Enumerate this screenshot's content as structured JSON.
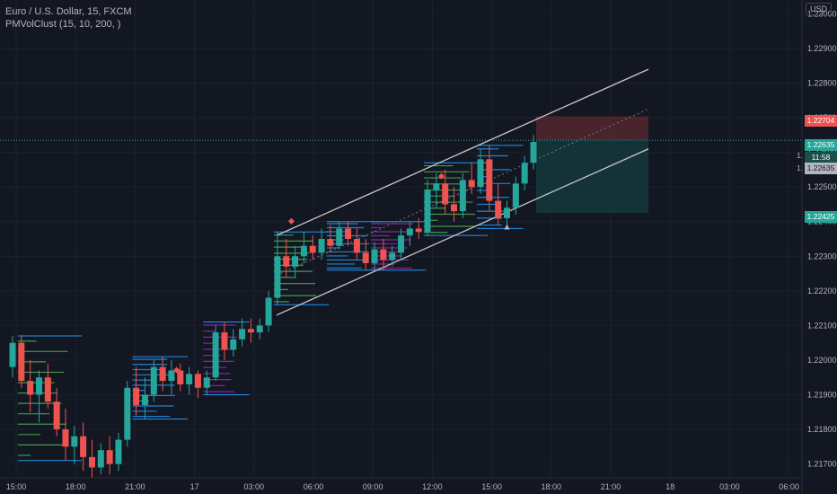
{
  "header": {
    "symbol_line": "Euro / U.S. Dollar, 15, FXCM",
    "indicator_line": "PMVolClust (15, 10, 200, )",
    "currency_button": "USD"
  },
  "price_tags": {
    "target": "1.22704",
    "last": "1.22635",
    "countdown": "11:58",
    "entry": "1.22635",
    "stop": "1.22425",
    "left_marks": [
      "1.",
      "1."
    ]
  },
  "colors": {
    "background": "#131722",
    "bull": "#26a69a",
    "bear": "#ef5350",
    "channel": "#c8c8c8",
    "cluster_blue": "#2196f3",
    "cluster_green": "#4caf50",
    "cluster_purple": "#9c27b0",
    "target_zone": "#5d2a30",
    "stop_zone": "#15383c"
  },
  "chart_data": {
    "type": "candlestick",
    "y_axis": {
      "ticks": [
        "1.23000",
        "1.22900",
        "1.22800",
        "1.22700",
        "1.22600",
        "1.22500",
        "1.22400",
        "1.22300",
        "1.22200",
        "1.22100",
        "1.22000",
        "1.21900",
        "1.21800",
        "1.21700"
      ],
      "range": [
        1.2166,
        1.2304
      ]
    },
    "x_axis": {
      "ticks": [
        "15:00",
        "18:00",
        "21:00",
        "17",
        "03:00",
        "06:00",
        "09:00",
        "12:00",
        "15:00",
        "18:00",
        "21:00",
        "18",
        "03:00",
        "06:00"
      ]
    },
    "candles": [
      [
        1.2198,
        1.2207,
        1.2195,
        1.2205
      ],
      [
        1.2205,
        1.2207,
        1.2192,
        1.2194
      ],
      [
        1.2194,
        1.22,
        1.2185,
        1.219
      ],
      [
        1.219,
        1.2197,
        1.2182,
        1.2195
      ],
      [
        1.2195,
        1.2199,
        1.2186,
        1.2188
      ],
      [
        1.2188,
        1.2192,
        1.2178,
        1.218
      ],
      [
        1.218,
        1.2186,
        1.2171,
        1.2175
      ],
      [
        1.2175,
        1.2181,
        1.217,
        1.2178
      ],
      [
        1.2178,
        1.2182,
        1.2168,
        1.2172
      ],
      [
        1.2172,
        1.2177,
        1.2166,
        1.2169
      ],
      [
        1.2169,
        1.2176,
        1.2167,
        1.2174
      ],
      [
        1.2174,
        1.2178,
        1.2167,
        1.217
      ],
      [
        1.217,
        1.2179,
        1.2168,
        1.2177
      ],
      [
        1.2177,
        1.2194,
        1.2175,
        1.2192
      ],
      [
        1.2192,
        1.2198,
        1.2184,
        1.2187
      ],
      [
        1.2187,
        1.2195,
        1.2183,
        1.219
      ],
      [
        1.219,
        1.22,
        1.2188,
        1.2198
      ],
      [
        1.2198,
        1.2201,
        1.2191,
        1.2194
      ],
      [
        1.2194,
        1.22,
        1.219,
        1.2197
      ],
      [
        1.2197,
        1.2199,
        1.2191,
        1.2193
      ],
      [
        1.2193,
        1.2198,
        1.219,
        1.2196
      ],
      [
        1.2196,
        1.2197,
        1.2189,
        1.2192
      ],
      [
        1.2192,
        1.2197,
        1.219,
        1.2195
      ],
      [
        1.2195,
        1.221,
        1.2194,
        1.2208
      ],
      [
        1.2208,
        1.2211,
        1.22,
        1.2203
      ],
      [
        1.2203,
        1.2209,
        1.2201,
        1.2206
      ],
      [
        1.2206,
        1.2212,
        1.2204,
        1.2209
      ],
      [
        1.2209,
        1.2212,
        1.2205,
        1.2208
      ],
      [
        1.2208,
        1.2212,
        1.2206,
        1.221
      ],
      [
        1.221,
        1.222,
        1.2208,
        1.2218
      ],
      [
        1.2218,
        1.2237,
        1.2216,
        1.223
      ],
      [
        1.223,
        1.2235,
        1.2224,
        1.2227
      ],
      [
        1.2227,
        1.2233,
        1.2224,
        1.223
      ],
      [
        1.223,
        1.2237,
        1.2228,
        1.2233
      ],
      [
        1.2233,
        1.2236,
        1.2229,
        1.2231
      ],
      [
        1.2231,
        1.2238,
        1.2229,
        1.2235
      ],
      [
        1.2235,
        1.2239,
        1.2231,
        1.2233
      ],
      [
        1.2233,
        1.224,
        1.2232,
        1.2238
      ],
      [
        1.2238,
        1.224,
        1.2233,
        1.2235
      ],
      [
        1.2235,
        1.2238,
        1.2229,
        1.2231
      ],
      [
        1.2231,
        1.2235,
        1.2226,
        1.2228
      ],
      [
        1.2228,
        1.2234,
        1.2226,
        1.2232
      ],
      [
        1.2232,
        1.2235,
        1.2226,
        1.2229
      ],
      [
        1.2229,
        1.2233,
        1.2227,
        1.2231
      ],
      [
        1.2231,
        1.2238,
        1.2229,
        1.2236
      ],
      [
        1.2236,
        1.224,
        1.2233,
        1.2238
      ],
      [
        1.2238,
        1.2241,
        1.2235,
        1.2237
      ],
      [
        1.2237,
        1.2252,
        1.2236,
        1.2249
      ],
      [
        1.2249,
        1.2254,
        1.2244,
        1.2251
      ],
      [
        1.2251,
        1.2255,
        1.2242,
        1.2245
      ],
      [
        1.2245,
        1.225,
        1.224,
        1.2243
      ],
      [
        1.2243,
        1.2254,
        1.2241,
        1.2252
      ],
      [
        1.2252,
        1.2257,
        1.2248,
        1.225
      ],
      [
        1.225,
        1.2261,
        1.2248,
        1.2258
      ],
      [
        1.2258,
        1.2262,
        1.2243,
        1.2246
      ],
      [
        1.2246,
        1.2251,
        1.2239,
        1.2241
      ],
      [
        1.2241,
        1.2246,
        1.2238,
        1.2244
      ],
      [
        1.2244,
        1.2253,
        1.2242,
        1.2251
      ],
      [
        1.2251,
        1.2259,
        1.2249,
        1.2257
      ],
      [
        1.2257,
        1.2265,
        1.2255,
        1.2263
      ]
    ],
    "channel": {
      "upper": [
        [
          0,
          1.2236
        ],
        [
          1,
          1.2284
        ]
      ],
      "lower": [
        [
          0,
          1.2213
        ],
        [
          1,
          1.2261
        ]
      ]
    },
    "position": {
      "target": 1.22704,
      "entry": 1.22635,
      "stop": 1.22425
    }
  }
}
